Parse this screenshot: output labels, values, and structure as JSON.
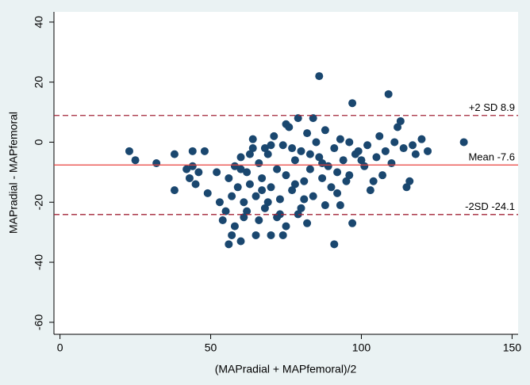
{
  "chart_data": {
    "type": "scatter",
    "x_label": "(MAPradial + MAPfemoral)/2",
    "y_label": "MAPradial - MAPfemoral",
    "color": "#1a476f",
    "xlim": [
      -2,
      152
    ],
    "xticks": [
      0,
      50,
      100,
      150
    ],
    "ylim": [
      -64,
      43.4
    ],
    "yticks": [
      -60,
      -40,
      -20,
      0,
      20,
      40
    ],
    "reference_lines": [
      {
        "value": 8.9,
        "label": "+2 SD 8.9",
        "style": "dashed",
        "color": "#a32638"
      },
      {
        "value": -7.6,
        "label": "Mean -7.6",
        "style": "solid",
        "color": "#e8413c"
      },
      {
        "value": -24.1,
        "label": "-2SD -24.1",
        "style": "dashed",
        "color": "#a32638"
      }
    ],
    "x": [
      23,
      25,
      32,
      38,
      38,
      42,
      43,
      44,
      44,
      45,
      46,
      48,
      49,
      52,
      53,
      54,
      55,
      56,
      57,
      58,
      60,
      61,
      63,
      65,
      68,
      70,
      72,
      74,
      75,
      80,
      82,
      86,
      88,
      91,
      93,
      97,
      97,
      109,
      115,
      116,
      113,
      112,
      120,
      122,
      134,
      107,
      103,
      104,
      100,
      99,
      56,
      57,
      58,
      59,
      60,
      61,
      62,
      63,
      64,
      65,
      66,
      67,
      68,
      69,
      70,
      71,
      72,
      73,
      74,
      75,
      76,
      77,
      78,
      79,
      80,
      81,
      82,
      83,
      84,
      85,
      86,
      87,
      88,
      89,
      90,
      91,
      92,
      93,
      94,
      95,
      96,
      98,
      101,
      102,
      105,
      106,
      108,
      110,
      111,
      114,
      117,
      118,
      66,
      69,
      73,
      77,
      79,
      81,
      84,
      64,
      62,
      70,
      75,
      78,
      60,
      83,
      87,
      92,
      96,
      67
    ],
    "y": [
      -3,
      -6,
      -7,
      -4,
      -16,
      -9,
      -12,
      -3,
      -8,
      -14,
      -10,
      -3,
      -17,
      -10,
      -20,
      -26,
      -23,
      -34,
      -31,
      -28,
      -33,
      -25,
      -4,
      -31,
      -2,
      -31,
      -25,
      -31,
      -28,
      -22,
      -27,
      22,
      -21,
      -34,
      -21,
      13,
      -27,
      16,
      -15,
      -13,
      7,
      5,
      1,
      -3,
      0,
      -11,
      -16,
      -13,
      -6,
      -3,
      -12,
      -18,
      -8,
      -15,
      -5,
      -20,
      -10,
      -14,
      -2,
      -18,
      -7,
      -12,
      -22,
      -4,
      -15,
      2,
      -9,
      -19,
      -1,
      -11,
      5,
      -16,
      -6,
      -24,
      -3,
      -13,
      3,
      -9,
      -18,
      0,
      -5,
      -12,
      4,
      -8,
      -15,
      -2,
      -10,
      1,
      -6,
      -13,
      0,
      -4,
      -8,
      -1,
      -5,
      2,
      -3,
      -7,
      0,
      -2,
      -1,
      -4,
      -26,
      -20,
      -24,
      -2,
      8,
      -19,
      8,
      1,
      -23,
      -1,
      6,
      -14,
      -9,
      -4,
      -7,
      -17,
      -11,
      -16
    ]
  }
}
